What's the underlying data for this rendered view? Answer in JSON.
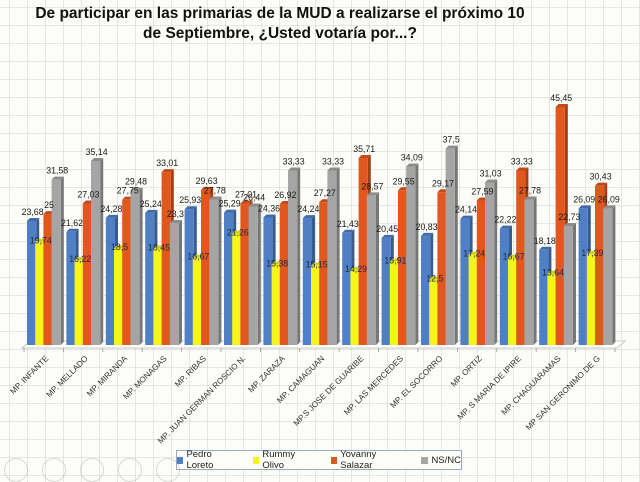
{
  "chart_data": {
    "type": "bar",
    "title_line1": "De participar en las primarias de la MUD a realizarse el próximo 10",
    "title_line2": "de Septiembre, ¿Usted votaría por...?",
    "xlabel": "",
    "ylabel": "",
    "ylim": [
      0,
      50
    ],
    "grid": true,
    "legend_position": "bottom",
    "categories": [
      "MP. INFANTE",
      "MP. MELLADO",
      "MP. MIRANDA",
      "MP. MONAGAS",
      "MP. RIBAS",
      "MP. JUAN GERMAN ROSCIO N.",
      "MP. ZARAZA",
      "MP. CAMAGUAN",
      "MP.S JOSE DE GUARIBE",
      "MP. LAS MERCEDES",
      "MP. EL SOCORRO",
      "MP. ORTIZ",
      "MP. S MARIA DE IPIRE",
      "MP. CHAGUARAMAS",
      "MP SAN GERONIMO DE G"
    ],
    "series": [
      {
        "name": "Pedro Loreto",
        "color": "#4f7fc4",
        "values": [
          23.68,
          21.62,
          24.28,
          25.24,
          25.93,
          25.29,
          24.36,
          24.24,
          21.43,
          20.45,
          20.83,
          24.14,
          22.22,
          18.18,
          26.09
        ],
        "labels": [
          "23,68",
          "21,62",
          "24,28",
          "25,24",
          "25,93",
          "25,29",
          "24,36",
          "24,24",
          "21,43",
          "20,45",
          "20,83",
          "24,14",
          "22,22",
          "18,18",
          "26,09"
        ]
      },
      {
        "name": "Rummy Olivo",
        "color": "#f5f51a",
        "values": [
          19.74,
          16.22,
          18.5,
          18.45,
          16.67,
          21.26,
          15.38,
          15.15,
          14.29,
          15.91,
          12.5,
          17.24,
          16.67,
          13.64,
          17.39
        ],
        "labels": [
          "19,74",
          "16,22",
          "18,5",
          "18,45",
          "16,67",
          "21,26",
          "15,38",
          "15,15",
          "14,29",
          "15,91",
          "12,5",
          "17,24",
          "16,67",
          "13,64",
          "17,39"
        ]
      },
      {
        "name": "Yovanny Salazar",
        "color": "#e2571e",
        "values": [
          25,
          27.03,
          27.75,
          33.01,
          29.63,
          27.01,
          26.92,
          27.27,
          35.71,
          29.55,
          29.17,
          27.59,
          33.33,
          45.45,
          30.43
        ],
        "labels": [
          "25",
          "27,03",
          "27,75",
          "33,01",
          "29,63",
          "27,01",
          "26,92",
          "27,27",
          "35,71",
          "29,55",
          "29,17",
          "27,59",
          "33,33",
          "45,45",
          "30,43"
        ]
      },
      {
        "name": "NS/NC",
        "color": "#a5a5a5",
        "values": [
          31.58,
          35.14,
          29.48,
          23.3,
          27.78,
          26.44,
          33.33,
          33.33,
          28.57,
          34.09,
          37.5,
          31.03,
          27.78,
          22.73,
          26.09
        ],
        "labels": [
          "31,58",
          "35,14",
          "29,48",
          "23,3",
          "27,78",
          "26,44",
          "33,33",
          "33,33",
          "28,57",
          "34,09",
          "37,5",
          "31,03",
          "27,78",
          "22,73",
          "26,09"
        ]
      }
    ]
  },
  "toolbar_icons": [
    "back-icon",
    "pen-icon",
    "slides-icon",
    "zoom-icon",
    "more-icon"
  ]
}
